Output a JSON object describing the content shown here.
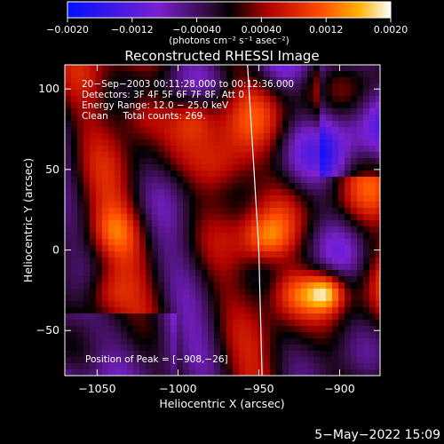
{
  "chart_data": {
    "type": "heatmap",
    "title": "Reconstructed RHESSI Image",
    "xlabel": "Heliocentric X (arcsec)",
    "ylabel": "Heliocentric Y (arcsec)",
    "xlim": [
      -1070,
      -875
    ],
    "ylim": [
      -78,
      115
    ],
    "xticks": [
      -1050,
      -1000,
      -950,
      -900
    ],
    "xtick_labels": [
      "−1050",
      "−1000",
      "−950",
      "−900"
    ],
    "yticks": [
      -50,
      0,
      50,
      100
    ],
    "ytick_labels": [
      "−50",
      "0",
      "50",
      "100"
    ],
    "colorbar": {
      "min": -0.002,
      "max": 0.002,
      "ticks": [
        -0.002,
        -0.0012,
        -0.0004,
        0.0004,
        0.0012,
        0.002
      ],
      "tick_labels": [
        "−0.0020",
        "−0.0012",
        "−0.00040",
        "0.00040",
        "0.0012",
        "0.0020"
      ],
      "unit_label": "(photons cm⁻² s⁻¹ asec⁻²)"
    },
    "annotations": [
      "20−Sep−2003 00:11:28.000 to 00:12:36.000",
      "Detectors: 3F 4F 5F 6F 7F 8F, Att 0",
      "Energy Range: 12.0 − 25.0 keV",
      "Clean     Total counts: 269."
    ],
    "peak_label": "Position of Peak = [−908,−26]",
    "peak": [
      -908,
      -26
    ],
    "limb_x": [
      -957,
      -953,
      -950,
      -948
    ],
    "limb_y": [
      115,
      50,
      0,
      -78
    ],
    "footer_date": "5−May−2022 15:09",
    "colors": {
      "background": "#000000",
      "limb": "#ffffff"
    }
  }
}
